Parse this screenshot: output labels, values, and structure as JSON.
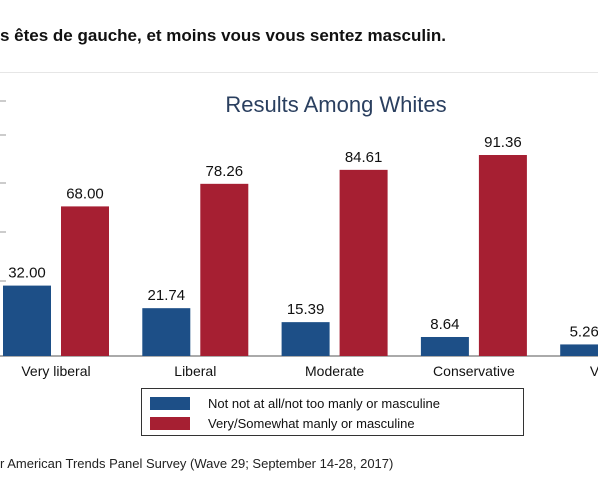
{
  "headline": "s êtes de gauche, et moins vous vous sentez masculin.",
  "source_note": "American Trends Panel Survey (Wave 29; September 14-28, 2017)",
  "colors": {
    "series_0": "#1d4f87",
    "series_1": "#a61f32",
    "title": "#2a3f5f"
  },
  "chart_data": {
    "type": "bar",
    "title": "Results Among Whites",
    "xlabel": "",
    "ylabel": "",
    "ylim": [
      0,
      100
    ],
    "grid": false,
    "legend_position": "bottom",
    "categories": [
      "Very liberal",
      "Liberal",
      "Moderate",
      "Conservative",
      "Very co"
    ],
    "series": [
      {
        "name": "Not not at all/not too manly or masculine",
        "values": [
          32.0,
          21.74,
          15.39,
          8.64,
          5.26
        ]
      },
      {
        "name": "Very/Somewhat manly or masculine",
        "values": [
          68.0,
          78.26,
          84.61,
          91.36,
          null
        ]
      }
    ]
  }
}
